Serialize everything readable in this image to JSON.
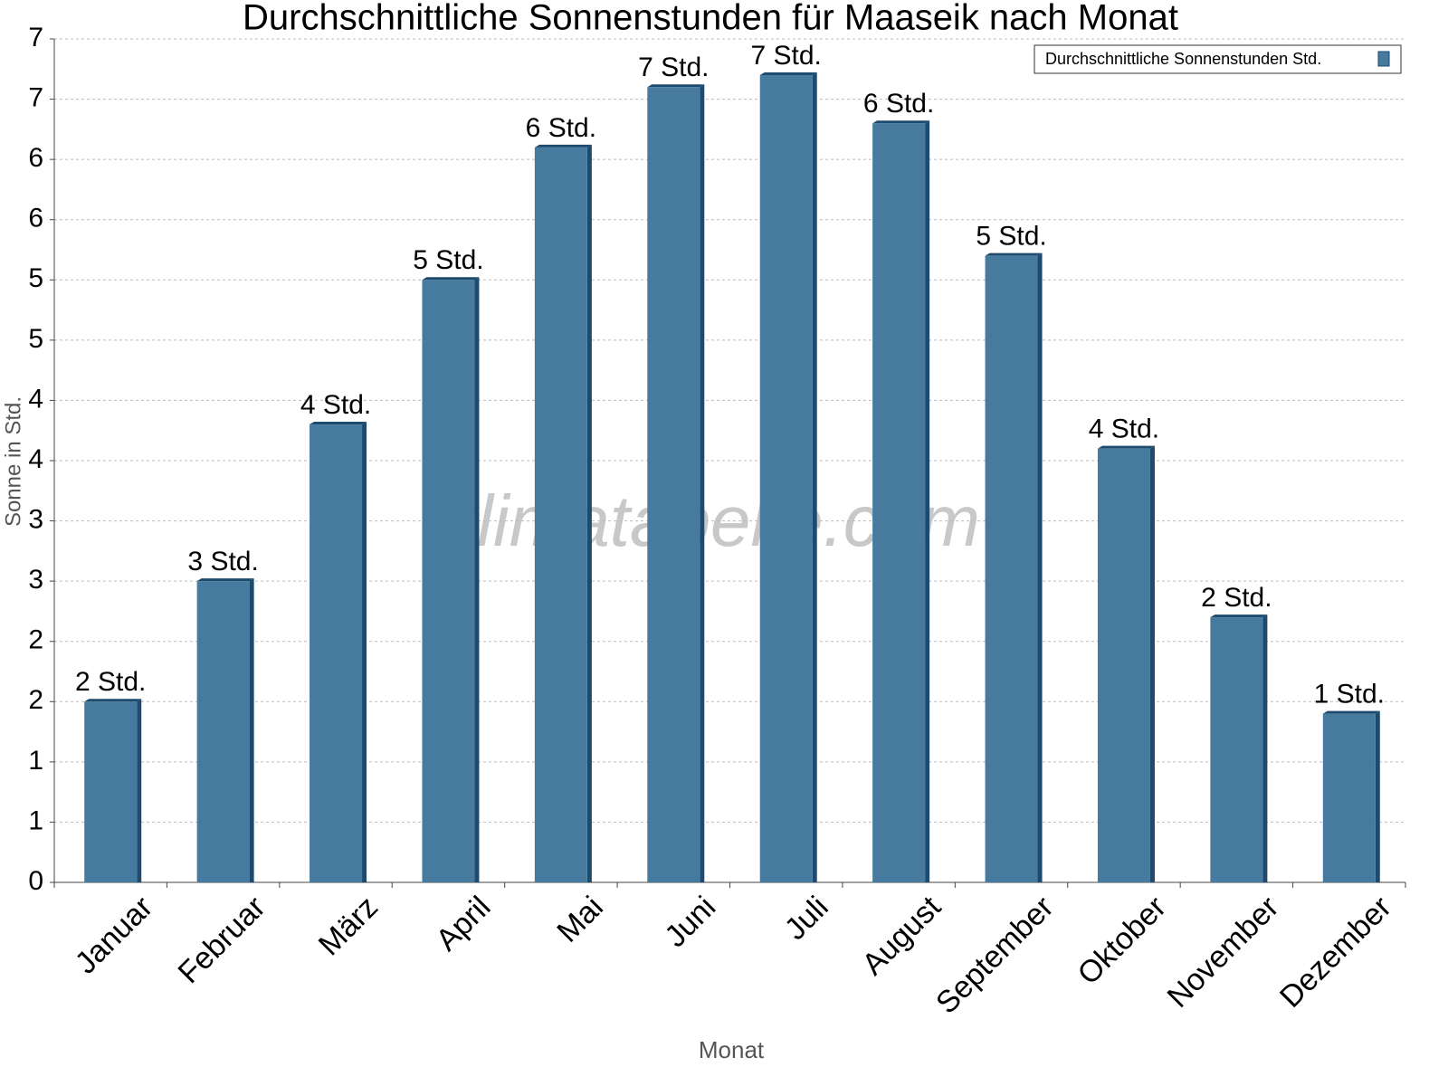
{
  "chart_data": {
    "type": "bar",
    "title": "Durchschnittliche Sonnenstunden für Maaseik nach Monat",
    "x_label": "Monat",
    "y_label": "Sonne in Std.",
    "watermark": "klimatabelle.com",
    "categories": [
      "Januar",
      "Februar",
      "März",
      "April",
      "Mai",
      "Juni",
      "Juli",
      "August",
      "September",
      "Oktober",
      "November",
      "Dezember"
    ],
    "series": [
      {
        "name": "Durchschnittliche Sonnenstunden Std.",
        "color": "#467b9f",
        "values": [
          1.5,
          2.5,
          3.8,
          5.0,
          6.1,
          6.6,
          6.7,
          6.3,
          5.2,
          3.6,
          2.2,
          1.4
        ],
        "value_labels": [
          "2 Std.",
          "3 Std.",
          "4 Std.",
          "5 Std.",
          "6 Std.",
          "7 Std.",
          "7 Std.",
          "6 Std.",
          "5 Std.",
          "4 Std.",
          "2 Std.",
          "1 Std."
        ]
      }
    ],
    "ylim": [
      0,
      7
    ],
    "yticks": [
      0,
      {
        "value": 0.5,
        "label": "1"
      },
      1,
      {
        "value": 1.5,
        "label": "2"
      },
      2,
      {
        "value": 2.5,
        "label": "3"
      },
      3,
      {
        "value": 3.5,
        "label": "4"
      },
      4,
      {
        "value": 4.5,
        "label": "5"
      },
      5,
      {
        "value": 5.5,
        "label": "6"
      },
      6,
      {
        "value": 6.5,
        "label": "7"
      },
      7
    ],
    "grid": true,
    "legend": "top-right"
  }
}
